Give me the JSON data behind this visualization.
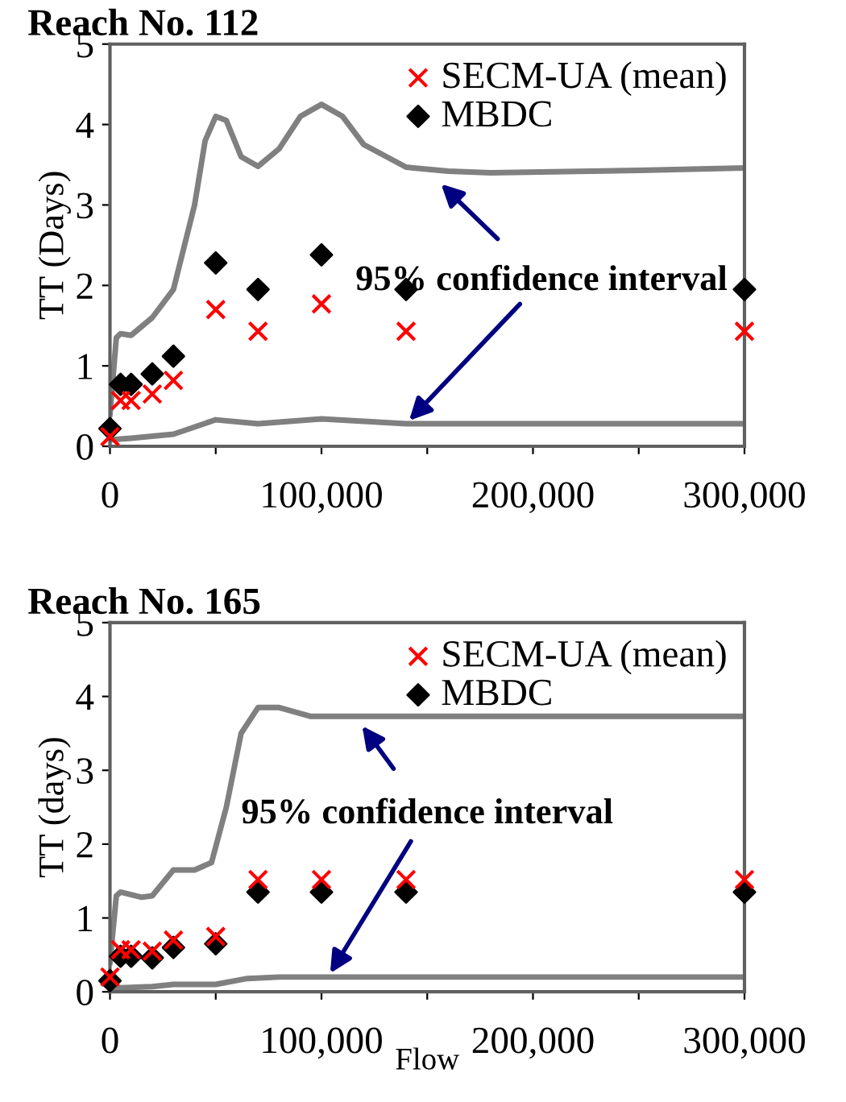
{
  "chart_data": [
    {
      "type": "scatter",
      "title": "Reach No. 112",
      "ylabel": "TT (Days)",
      "xlim": [
        0,
        300000
      ],
      "ylim": [
        0,
        5
      ],
      "xticks": [
        0,
        {
          "value": 50000,
          "label": null
        },
        {
          "value": 100000,
          "label": "100,000"
        },
        {
          "value": 150000,
          "label": null
        },
        {
          "value": 200000,
          "label": "200,000"
        },
        {
          "value": 250000,
          "label": null
        },
        {
          "value": 300000,
          "label": "300,000"
        }
      ],
      "yticks": [
        0,
        1,
        2,
        3,
        4,
        5
      ],
      "grid": false,
      "legend": "top right",
      "x": [
        0,
        5000,
        10000,
        20000,
        30000,
        50000,
        70000,
        100000,
        140000,
        300000
      ],
      "series": [
        {
          "type": "line",
          "color": "#808080",
          "x": [
            0,
            3000,
            5000,
            10000,
            20000,
            30000,
            40000,
            45000,
            50000,
            55000,
            62000,
            70000,
            80000,
            90000,
            100000,
            110000,
            120000,
            140000,
            160000,
            180000,
            250000,
            300000
          ],
          "values": [
            0.4,
            1.35,
            1.4,
            1.38,
            1.6,
            1.95,
            3.0,
            3.8,
            4.1,
            4.05,
            3.6,
            3.48,
            3.7,
            4.1,
            4.25,
            4.1,
            3.75,
            3.47,
            3.42,
            3.4,
            3.43,
            3.46
          ]
        },
        {
          "type": "line",
          "color": "#808080",
          "x": [
            0,
            10000,
            30000,
            50000,
            70000,
            100000,
            140000,
            300000
          ],
          "values": [
            0.08,
            0.1,
            0.15,
            0.33,
            0.28,
            0.34,
            0.28,
            0.28
          ]
        },
        {
          "name": "SECM-UA (mean)",
          "color": "#ff0000",
          "marker": "cross",
          "values": [
            0.12,
            0.57,
            0.57,
            0.65,
            0.82,
            1.7,
            1.43,
            1.77,
            1.43,
            1.43
          ]
        },
        {
          "name": "MBDC",
          "color": "#000000",
          "marker": "diamond",
          "values": [
            0.22,
            0.77,
            0.77,
            0.9,
            1.12,
            2.28,
            1.95,
            2.38,
            1.95,
            1.95
          ]
        }
      ],
      "annotations": [
        {
          "text": "95% confidence interval",
          "x": 155000,
          "y": 3.3
        }
      ]
    },
    {
      "type": "scatter",
      "title": "Reach No. 165",
      "xlabel": "Flow",
      "ylabel": "TT (days)",
      "xlim": [
        0,
        300000
      ],
      "ylim": [
        0,
        5
      ],
      "xticks": [
        0,
        {
          "value": 50000,
          "label": null
        },
        {
          "value": 100000,
          "label": "100,000"
        },
        {
          "value": 150000,
          "label": null
        },
        {
          "value": 200000,
          "label": "200,000"
        },
        {
          "value": 250000,
          "label": null
        },
        {
          "value": 300000,
          "label": "300,000"
        }
      ],
      "yticks": [
        0,
        1,
        2,
        3,
        4,
        5
      ],
      "grid": false,
      "legend": "top right",
      "x": [
        0,
        5000,
        10000,
        20000,
        30000,
        50000,
        70000,
        100000,
        140000,
        300000
      ],
      "series": [
        {
          "type": "line",
          "color": "#808080",
          "x": [
            0,
            3000,
            5000,
            15000,
            20000,
            30000,
            40000,
            48000,
            55000,
            62000,
            70000,
            80000,
            95000,
            300000
          ],
          "values": [
            0.4,
            1.3,
            1.35,
            1.28,
            1.3,
            1.65,
            1.65,
            1.75,
            2.5,
            3.5,
            3.85,
            3.85,
            3.73,
            3.73
          ]
        },
        {
          "type": "line",
          "color": "#808080",
          "x": [
            0,
            20000,
            30000,
            50000,
            65000,
            80000,
            300000
          ],
          "values": [
            0.05,
            0.07,
            0.1,
            0.1,
            0.18,
            0.2,
            0.2
          ]
        },
        {
          "name": "SECM-UA (mean)",
          "color": "#ff0000",
          "marker": "cross",
          "values": [
            0.2,
            0.57,
            0.57,
            0.55,
            0.7,
            0.75,
            1.52,
            1.52,
            1.52,
            1.52
          ]
        },
        {
          "name": "MBDC",
          "color": "#000000",
          "marker": "diamond",
          "values": [
            0.15,
            0.48,
            0.48,
            0.46,
            0.6,
            0.65,
            1.35,
            1.35,
            1.35,
            1.35
          ]
        }
      ],
      "annotations": [
        {
          "text": "95% confidence interval",
          "x": 118000,
          "y": 3.65
        }
      ]
    }
  ]
}
